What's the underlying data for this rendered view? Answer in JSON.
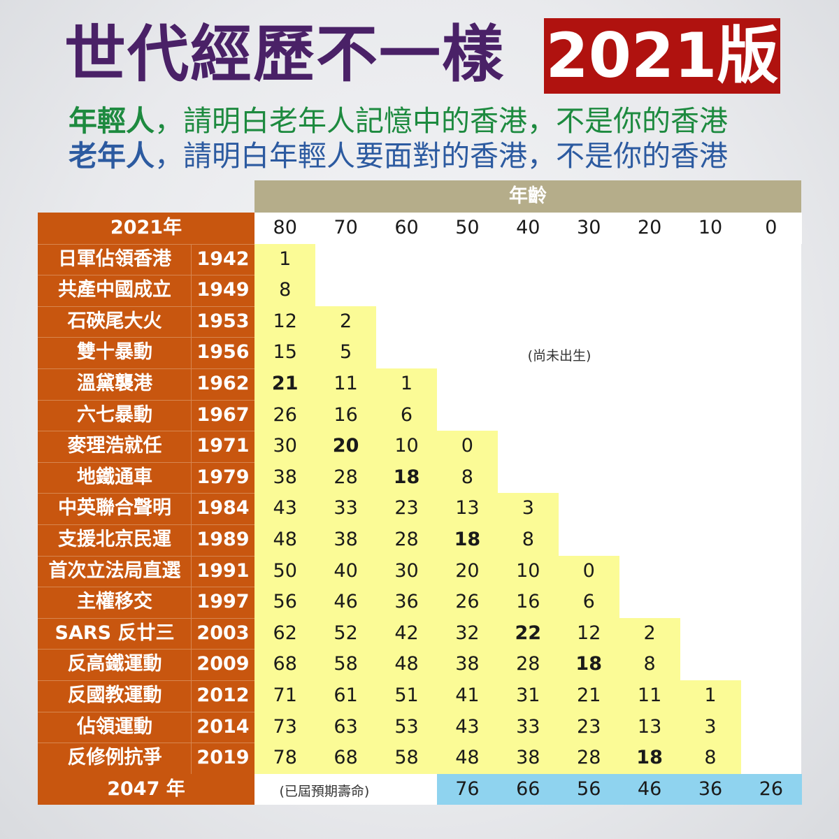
{
  "title": {
    "main": "世代經歷不一樣",
    "badge": "2021版"
  },
  "subtitle": {
    "line1_lead": "年輕人",
    "line1_rest": "，請明白老年人記憶中的香港，不是你的香港",
    "line2_lead": "老年人",
    "line2_rest": "，請明白年輕人要面對的香港，不是你的香港"
  },
  "table": {
    "age_header": "年齡",
    "row_header_label": "2021年",
    "ages": [
      "80",
      "70",
      "60",
      "50",
      "40",
      "30",
      "20",
      "10",
      "0"
    ],
    "not_born_note": "(尚未出生)",
    "rows": [
      {
        "event": "日軍佔領香港",
        "year": "1942",
        "values": [
          "1"
        ],
        "bold": []
      },
      {
        "event": "共產中國成立",
        "year": "1949",
        "values": [
          "8"
        ],
        "bold": []
      },
      {
        "event": "石硤尾大火",
        "year": "1953",
        "values": [
          "12",
          "2"
        ],
        "bold": []
      },
      {
        "event": "雙十暴動",
        "year": "1956",
        "values": [
          "15",
          "5"
        ],
        "bold": []
      },
      {
        "event": "溫黛襲港",
        "year": "1962",
        "values": [
          "21",
          "11",
          "1"
        ],
        "bold": [
          0
        ]
      },
      {
        "event": "六七暴動",
        "year": "1967",
        "values": [
          "26",
          "16",
          "6"
        ],
        "bold": []
      },
      {
        "event": "麥理浩就任",
        "year": "1971",
        "values": [
          "30",
          "20",
          "10",
          "0"
        ],
        "bold": [
          1
        ]
      },
      {
        "event": "地鐵通車",
        "year": "1979",
        "values": [
          "38",
          "28",
          "18",
          "8"
        ],
        "bold": [
          2
        ]
      },
      {
        "event": "中英聯合聲明",
        "year": "1984",
        "values": [
          "43",
          "33",
          "23",
          "13",
          "3"
        ],
        "bold": []
      },
      {
        "event": "支援北京民運",
        "year": "1989",
        "values": [
          "48",
          "38",
          "28",
          "18",
          "8"
        ],
        "bold": [
          3
        ]
      },
      {
        "event": "首次立法局直選",
        "year": "1991",
        "values": [
          "50",
          "40",
          "30",
          "20",
          "10",
          "0"
        ],
        "bold": []
      },
      {
        "event": "主權移交",
        "year": "1997",
        "values": [
          "56",
          "46",
          "36",
          "26",
          "16",
          "6"
        ],
        "bold": []
      },
      {
        "event": "SARS 反廿三",
        "year": "2003",
        "values": [
          "62",
          "52",
          "42",
          "32",
          "22",
          "12",
          "2"
        ],
        "bold": [
          4
        ]
      },
      {
        "event": "反高鐵運動",
        "year": "2009",
        "values": [
          "68",
          "58",
          "48",
          "38",
          "28",
          "18",
          "8"
        ],
        "bold": [
          5
        ]
      },
      {
        "event": "反國教運動",
        "year": "2012",
        "values": [
          "71",
          "61",
          "51",
          "41",
          "31",
          "21",
          "11",
          "1"
        ],
        "bold": []
      },
      {
        "event": "佔領運動",
        "year": "2014",
        "values": [
          "73",
          "63",
          "53",
          "43",
          "33",
          "23",
          "13",
          "3"
        ],
        "bold": []
      },
      {
        "event": "反修例抗爭",
        "year": "2019",
        "values": [
          "78",
          "68",
          "58",
          "48",
          "38",
          "28",
          "18",
          "8"
        ],
        "bold": [
          6
        ]
      }
    ],
    "footer": {
      "label": "2047 年",
      "expired_note": "(已屆預期壽命)",
      "values": [
        "76",
        "66",
        "56",
        "46",
        "36",
        "26"
      ]
    }
  },
  "colors": {
    "title": "#4a2167",
    "badge": "#b0120f",
    "label_bg": "#c8560f",
    "yellow": "#fbfb96",
    "blue": "#8fd3ef",
    "age_header_bg": "#b5ad8a",
    "young_green": "#1d8a3f",
    "old_blue": "#2c5aa0"
  }
}
